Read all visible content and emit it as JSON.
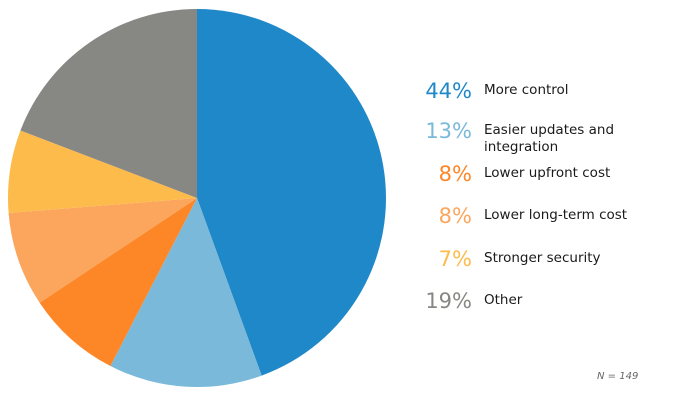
{
  "chart_data": {
    "type": "pie",
    "slices": [
      {
        "label": "More control",
        "percent_label": "44%",
        "value": 44,
        "color": "#1f88c9"
      },
      {
        "label": "Easier updates and integration",
        "percent_label": "13%",
        "value": 13,
        "color": "#7ab9d9"
      },
      {
        "label": "Lower upfront cost",
        "percent_label": "8%",
        "value": 8,
        "color": "#fd8627"
      },
      {
        "label": "Lower long-term cost",
        "percent_label": "8%",
        "value": 8,
        "color": "#fca65d"
      },
      {
        "label": "Stronger security",
        "percent_label": "7%",
        "value": 7,
        "color": "#fdbb4b"
      },
      {
        "label": "Other",
        "percent_label": "19%",
        "value": 19,
        "color": "#878783"
      }
    ],
    "legend_position": "right",
    "start_angle": "12 o'clock",
    "direction": "clockwise"
  },
  "footnote": "N = 149"
}
